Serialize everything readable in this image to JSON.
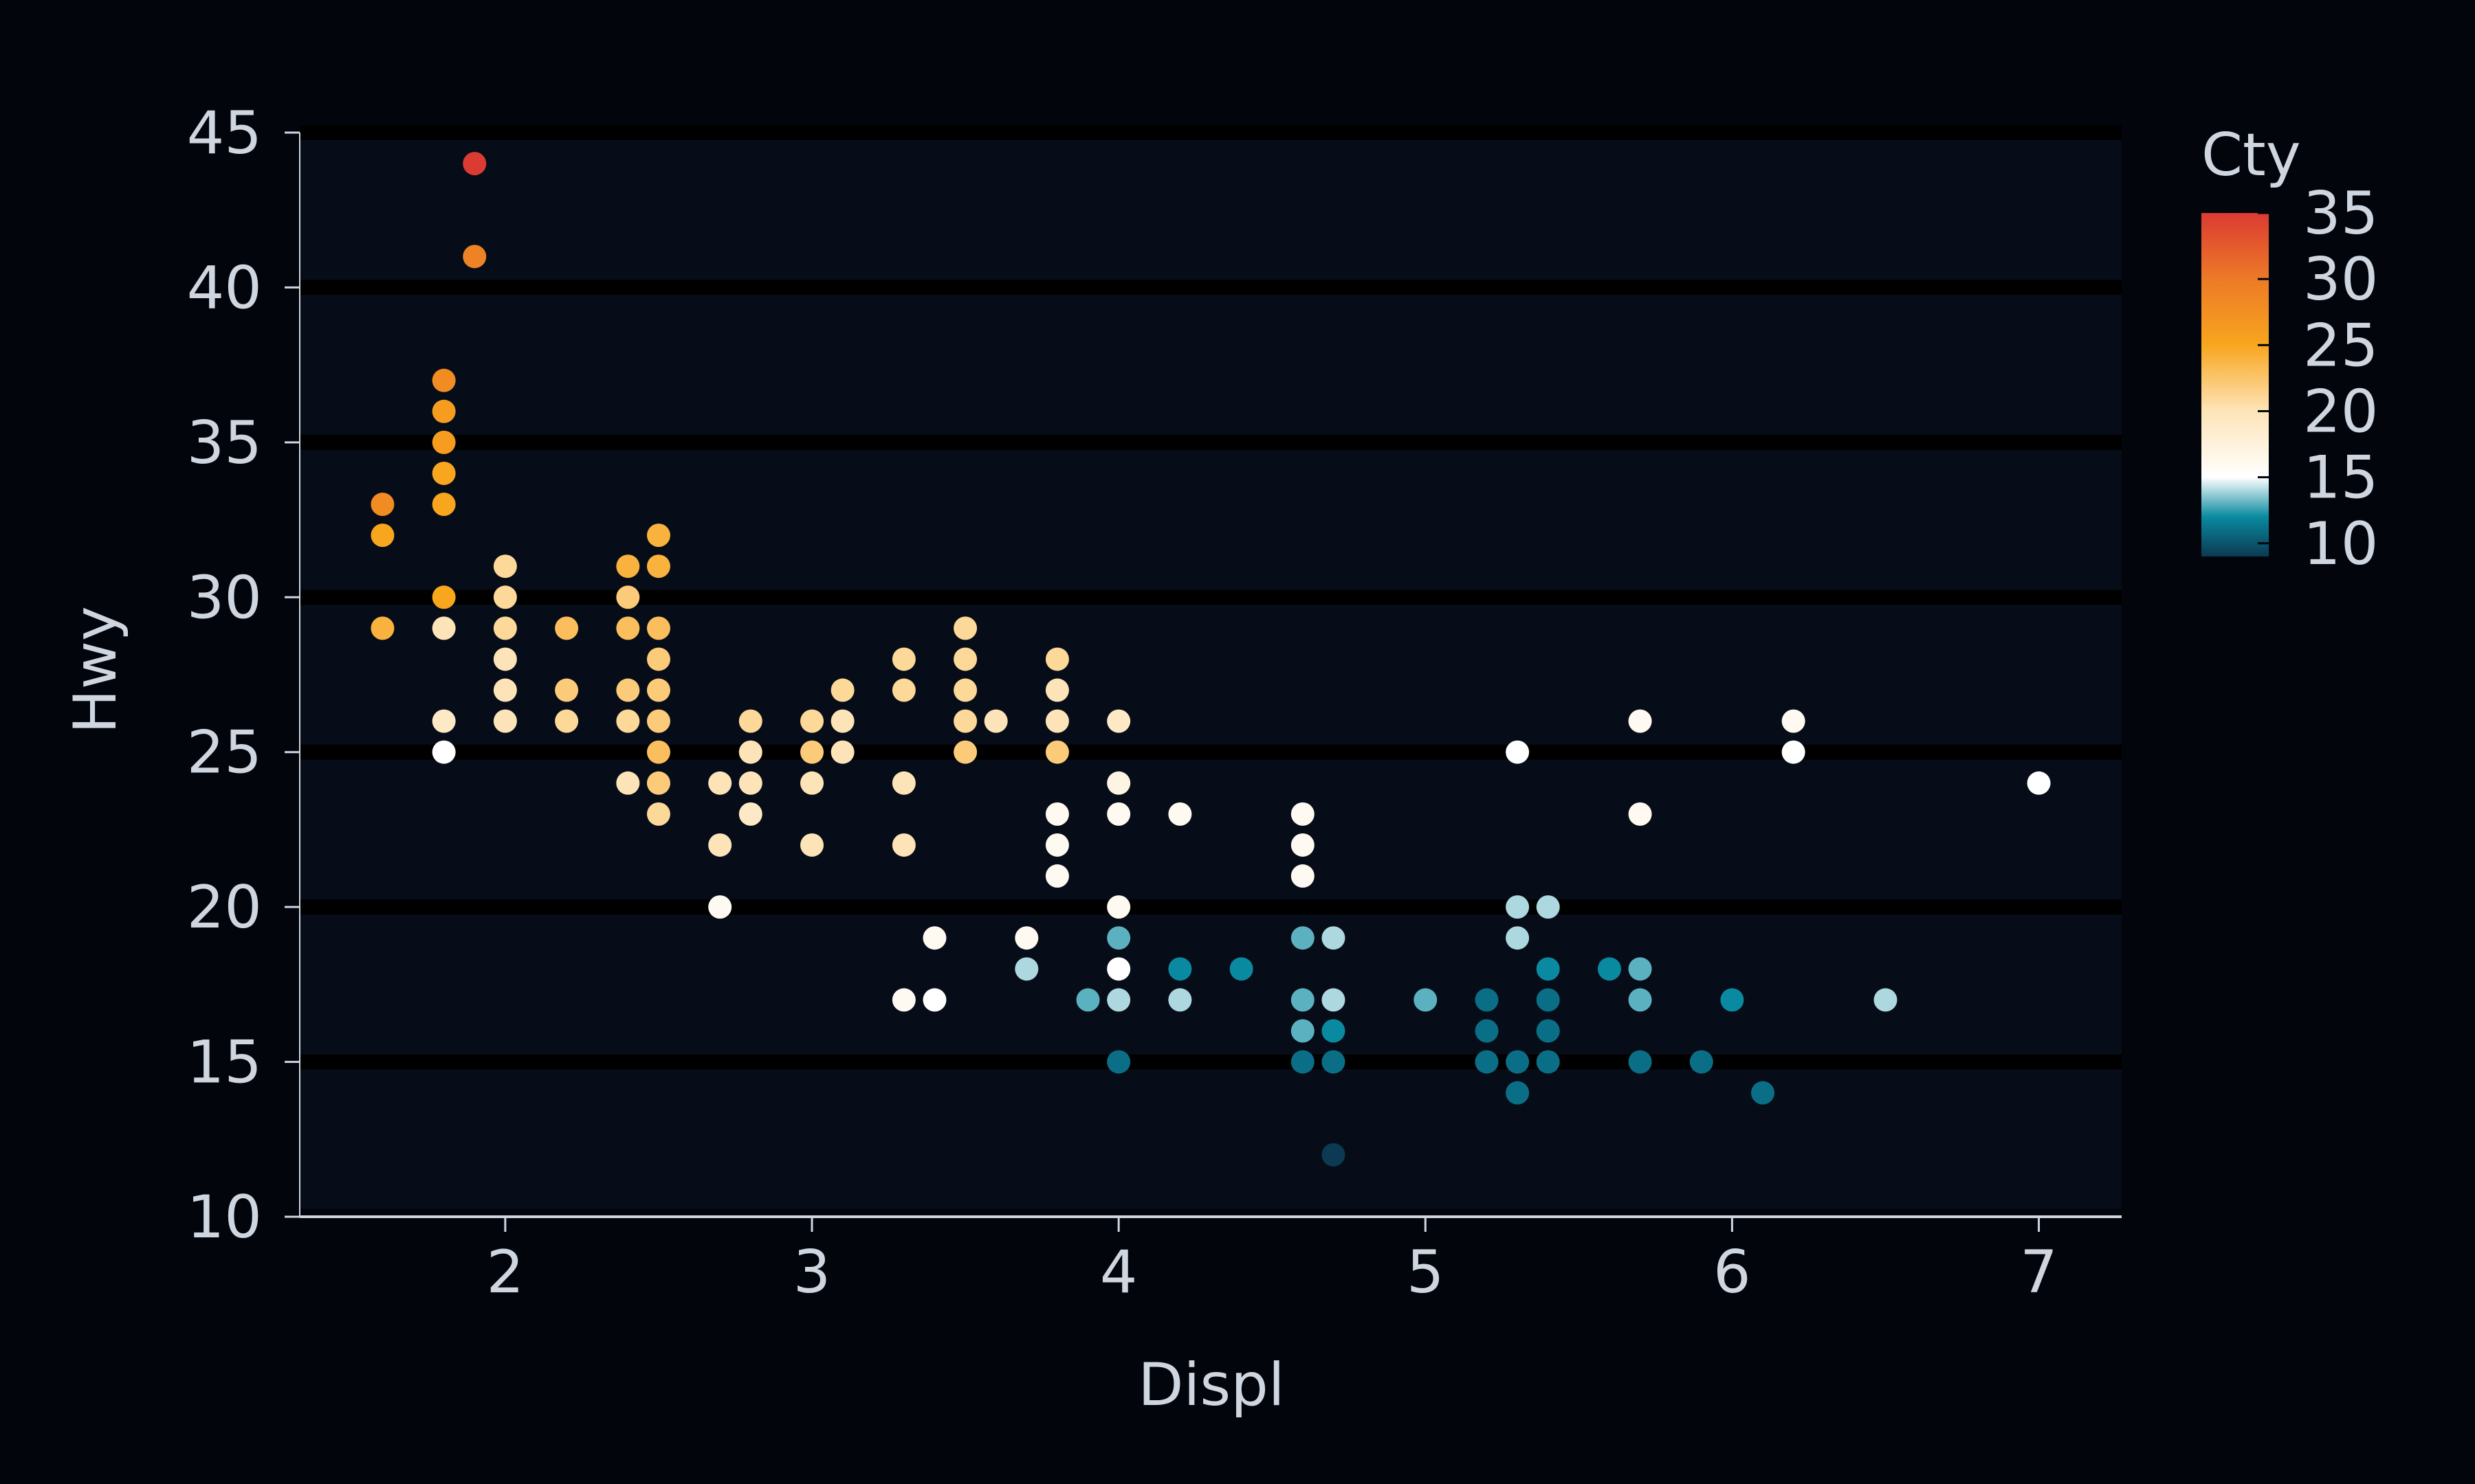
{
  "chart_data": {
    "type": "scatter",
    "title": "",
    "xlabel": "Displ",
    "ylabel": "Hwy",
    "xlim": [
      1.33,
      7.27
    ],
    "ylim": [
      10,
      45
    ],
    "x_ticks": [
      2,
      3,
      4,
      5,
      6,
      7
    ],
    "y_ticks": [
      10,
      15,
      20,
      25,
      30,
      35,
      40,
      45
    ],
    "grid": "horizontal",
    "legend_position": "right",
    "colorbar": {
      "title": "Cty",
      "min": 9,
      "max": 35,
      "ticks": [
        10,
        15,
        20,
        25,
        30,
        35
      ],
      "color_stops": [
        {
          "value": 9,
          "color": "#0b3a52"
        },
        {
          "value": 12,
          "color": "#0a8aa0"
        },
        {
          "value": 15,
          "color": "#ffffff"
        },
        {
          "value": 20,
          "color": "#fde4b8"
        },
        {
          "value": 25,
          "color": "#f8a61e"
        },
        {
          "value": 30,
          "color": "#ec7a27"
        },
        {
          "value": 35,
          "color": "#dc3b33"
        }
      ]
    },
    "colors": {
      "background": "#02050c",
      "panel": "#070d18",
      "gridline": "#000000",
      "axis": "#cfd6e0",
      "text": "#cfd6e0"
    },
    "points": [
      [
        1.9,
        44,
        35
      ],
      [
        1.9,
        41,
        29
      ],
      [
        1.6,
        33,
        28
      ],
      [
        1.6,
        32,
        25
      ],
      [
        1.6,
        29,
        24
      ],
      [
        1.8,
        37,
        28
      ],
      [
        1.8,
        36,
        26
      ],
      [
        1.8,
        35,
        26
      ],
      [
        1.8,
        34,
        25
      ],
      [
        1.8,
        33,
        25
      ],
      [
        1.8,
        30,
        25
      ],
      [
        1.8,
        29,
        20
      ],
      [
        1.8,
        26,
        19
      ],
      [
        1.8,
        25,
        15
      ],
      [
        2.0,
        31,
        21
      ],
      [
        2.0,
        30,
        21
      ],
      [
        2.0,
        29,
        21
      ],
      [
        2.0,
        28,
        20
      ],
      [
        2.0,
        27,
        20
      ],
      [
        2.0,
        26,
        20
      ],
      [
        2.2,
        29,
        23
      ],
      [
        2.2,
        27,
        22
      ],
      [
        2.2,
        26,
        21
      ],
      [
        2.4,
        31,
        24
      ],
      [
        2.4,
        30,
        22
      ],
      [
        2.4,
        29,
        23
      ],
      [
        2.4,
        27,
        22
      ],
      [
        2.4,
        26,
        21
      ],
      [
        2.4,
        24,
        20
      ],
      [
        2.5,
        32,
        24
      ],
      [
        2.5,
        31,
        24
      ],
      [
        2.5,
        29,
        23
      ],
      [
        2.5,
        28,
        22
      ],
      [
        2.5,
        27,
        22
      ],
      [
        2.5,
        26,
        22
      ],
      [
        2.5,
        25,
        23
      ],
      [
        2.5,
        24,
        22
      ],
      [
        2.5,
        23,
        21
      ],
      [
        2.7,
        24,
        20
      ],
      [
        2.7,
        22,
        20
      ],
      [
        2.7,
        20,
        16
      ],
      [
        2.8,
        26,
        21
      ],
      [
        2.8,
        25,
        20
      ],
      [
        2.8,
        24,
        20
      ],
      [
        2.8,
        23,
        19
      ],
      [
        3.0,
        26,
        21
      ],
      [
        3.0,
        25,
        22
      ],
      [
        3.0,
        24,
        20
      ],
      [
        3.0,
        22,
        20
      ],
      [
        3.1,
        27,
        21
      ],
      [
        3.1,
        26,
        20
      ],
      [
        3.1,
        25,
        20
      ],
      [
        3.3,
        28,
        21
      ],
      [
        3.3,
        27,
        21
      ],
      [
        3.3,
        24,
        20
      ],
      [
        3.3,
        22,
        20
      ],
      [
        3.3,
        17,
        16
      ],
      [
        3.4,
        19,
        16
      ],
      [
        3.4,
        17,
        15
      ],
      [
        3.5,
        29,
        21
      ],
      [
        3.5,
        28,
        21
      ],
      [
        3.5,
        27,
        21
      ],
      [
        3.5,
        26,
        21
      ],
      [
        3.5,
        25,
        22
      ],
      [
        3.6,
        26,
        20
      ],
      [
        3.7,
        19,
        16
      ],
      [
        3.7,
        18,
        14
      ],
      [
        3.8,
        28,
        21
      ],
      [
        3.8,
        27,
        20
      ],
      [
        3.8,
        26,
        20
      ],
      [
        3.8,
        25,
        22
      ],
      [
        3.8,
        23,
        16
      ],
      [
        3.8,
        22,
        16
      ],
      [
        3.8,
        21,
        16
      ],
      [
        3.9,
        17,
        13
      ],
      [
        4.0,
        26,
        19
      ],
      [
        4.0,
        24,
        17
      ],
      [
        4.0,
        23,
        16
      ],
      [
        4.0,
        20,
        16
      ],
      [
        4.0,
        19,
        13
      ],
      [
        4.0,
        18,
        15
      ],
      [
        4.0,
        17,
        14
      ],
      [
        4.0,
        15,
        11
      ],
      [
        4.2,
        23,
        16
      ],
      [
        4.2,
        18,
        12
      ],
      [
        4.2,
        17,
        14
      ],
      [
        4.4,
        18,
        12
      ],
      [
        4.6,
        23,
        16
      ],
      [
        4.6,
        22,
        16
      ],
      [
        4.6,
        21,
        16
      ],
      [
        4.6,
        19,
        13
      ],
      [
        4.6,
        17,
        13
      ],
      [
        4.6,
        16,
        13
      ],
      [
        4.6,
        15,
        11
      ],
      [
        4.7,
        19,
        14
      ],
      [
        4.7,
        17,
        14
      ],
      [
        4.7,
        16,
        12
      ],
      [
        4.7,
        15,
        11
      ],
      [
        4.7,
        12,
        9
      ],
      [
        5.0,
        17,
        13
      ],
      [
        5.2,
        17,
        11
      ],
      [
        5.2,
        16,
        11
      ],
      [
        5.2,
        15,
        11
      ],
      [
        5.3,
        25,
        15
      ],
      [
        5.3,
        20,
        14
      ],
      [
        5.3,
        19,
        14
      ],
      [
        5.3,
        15,
        11
      ],
      [
        5.3,
        14,
        11
      ],
      [
        5.4,
        20,
        14
      ],
      [
        5.4,
        18,
        12
      ],
      [
        5.4,
        17,
        11
      ],
      [
        5.4,
        16,
        11
      ],
      [
        5.4,
        15,
        11
      ],
      [
        5.6,
        18,
        12
      ],
      [
        5.7,
        26,
        16
      ],
      [
        5.7,
        23,
        16
      ],
      [
        5.7,
        18,
        13
      ],
      [
        5.7,
        17,
        13
      ],
      [
        5.7,
        15,
        11
      ],
      [
        5.9,
        15,
        11
      ],
      [
        6.0,
        17,
        12
      ],
      [
        6.1,
        14,
        11
      ],
      [
        6.2,
        26,
        16
      ],
      [
        6.2,
        25,
        15
      ],
      [
        6.5,
        17,
        14
      ],
      [
        7.0,
        24,
        15
      ]
    ]
  }
}
